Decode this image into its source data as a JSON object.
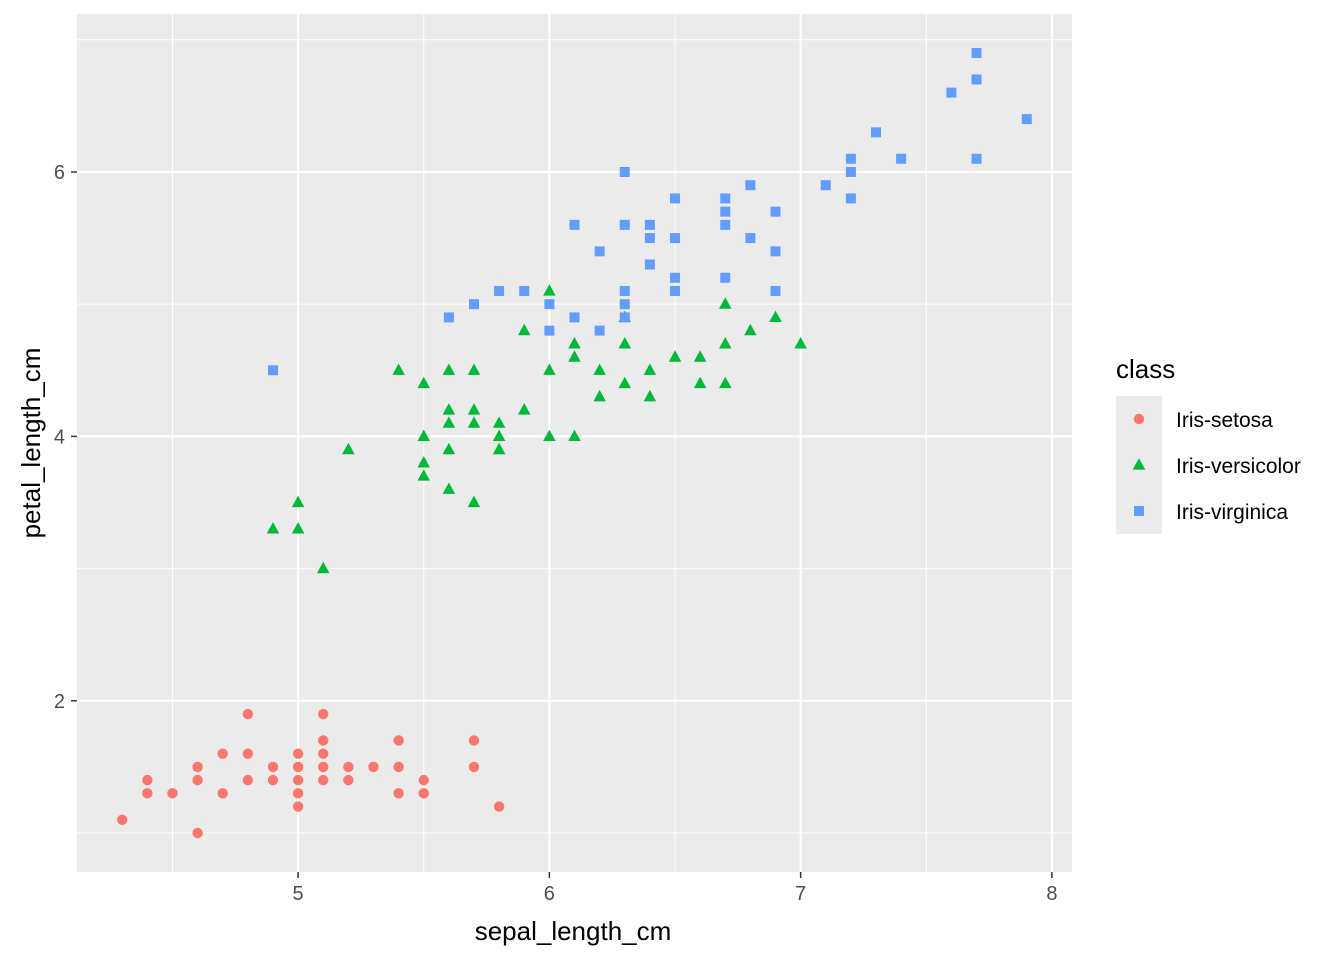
{
  "chart_data": {
    "type": "scatter",
    "xlabel": "sepal_length_cm",
    "ylabel": "petal_length_cm",
    "xlim": [
      4.12,
      8.08
    ],
    "ylim": [
      0.705,
      7.195
    ],
    "x_ticks": [
      5,
      6,
      7,
      8
    ],
    "x_tick_labels": [
      "5",
      "6",
      "7",
      "8"
    ],
    "y_ticks": [
      2,
      4,
      6
    ],
    "y_tick_labels": [
      "2",
      "4",
      "6"
    ],
    "grid": true,
    "legend": {
      "title": "class",
      "placement": "right"
    },
    "series": [
      {
        "name": "Iris-setosa",
        "color": "#F8766D",
        "shape": "circle",
        "points": [
          [
            4.3,
            1.1
          ],
          [
            4.4,
            1.4
          ],
          [
            4.4,
            1.3
          ],
          [
            4.5,
            1.3
          ],
          [
            4.6,
            1.5
          ],
          [
            4.6,
            1.4
          ],
          [
            4.6,
            1.0
          ],
          [
            4.7,
            1.6
          ],
          [
            4.7,
            1.3
          ],
          [
            4.8,
            1.9
          ],
          [
            4.8,
            1.6
          ],
          [
            4.8,
            1.4
          ],
          [
            4.9,
            1.5
          ],
          [
            4.9,
            1.4
          ],
          [
            5.0,
            1.6
          ],
          [
            5.0,
            1.5
          ],
          [
            5.0,
            1.4
          ],
          [
            5.0,
            1.3
          ],
          [
            5.0,
            1.2
          ],
          [
            5.1,
            1.9
          ],
          [
            5.1,
            1.7
          ],
          [
            5.1,
            1.6
          ],
          [
            5.1,
            1.5
          ],
          [
            5.1,
            1.4
          ],
          [
            5.2,
            1.5
          ],
          [
            5.2,
            1.4
          ],
          [
            5.3,
            1.5
          ],
          [
            5.4,
            1.7
          ],
          [
            5.4,
            1.5
          ],
          [
            5.4,
            1.3
          ],
          [
            5.5,
            1.4
          ],
          [
            5.5,
            1.3
          ],
          [
            5.7,
            1.7
          ],
          [
            5.7,
            1.5
          ],
          [
            5.8,
            1.2
          ]
        ]
      },
      {
        "name": "Iris-versicolor",
        "color": "#00BA38",
        "shape": "triangle",
        "points": [
          [
            4.9,
            3.3
          ],
          [
            5.0,
            3.5
          ],
          [
            5.0,
            3.3
          ],
          [
            5.1,
            3.0
          ],
          [
            5.2,
            3.9
          ],
          [
            5.4,
            4.5
          ],
          [
            5.5,
            4.4
          ],
          [
            5.5,
            4.0
          ],
          [
            5.5,
            3.8
          ],
          [
            5.5,
            3.7
          ],
          [
            5.6,
            4.5
          ],
          [
            5.6,
            4.2
          ],
          [
            5.6,
            4.1
          ],
          [
            5.6,
            3.9
          ],
          [
            5.6,
            3.6
          ],
          [
            5.7,
            4.5
          ],
          [
            5.7,
            4.2
          ],
          [
            5.7,
            4.1
          ],
          [
            5.7,
            3.5
          ],
          [
            5.8,
            4.1
          ],
          [
            5.8,
            4.0
          ],
          [
            5.8,
            3.9
          ],
          [
            5.9,
            4.8
          ],
          [
            5.9,
            4.2
          ],
          [
            6.0,
            5.1
          ],
          [
            6.0,
            4.5
          ],
          [
            6.0,
            4.0
          ],
          [
            6.1,
            4.7
          ],
          [
            6.1,
            4.6
          ],
          [
            6.1,
            4.0
          ],
          [
            6.2,
            4.5
          ],
          [
            6.2,
            4.3
          ],
          [
            6.3,
            4.9
          ],
          [
            6.3,
            4.7
          ],
          [
            6.3,
            4.4
          ],
          [
            6.4,
            4.5
          ],
          [
            6.4,
            4.3
          ],
          [
            6.5,
            4.6
          ],
          [
            6.6,
            4.6
          ],
          [
            6.6,
            4.4
          ],
          [
            6.7,
            5.0
          ],
          [
            6.7,
            4.7
          ],
          [
            6.7,
            4.4
          ],
          [
            6.8,
            4.8
          ],
          [
            6.9,
            4.9
          ],
          [
            7.0,
            4.7
          ]
        ]
      },
      {
        "name": "Iris-virginica",
        "color": "#619CFF",
        "shape": "square",
        "points": [
          [
            4.9,
            4.5
          ],
          [
            5.6,
            4.9
          ],
          [
            5.7,
            5.0
          ],
          [
            5.8,
            5.1
          ],
          [
            5.9,
            5.1
          ],
          [
            6.0,
            5.0
          ],
          [
            6.0,
            4.8
          ],
          [
            6.1,
            5.6
          ],
          [
            6.1,
            4.9
          ],
          [
            6.2,
            5.4
          ],
          [
            6.2,
            4.8
          ],
          [
            6.3,
            6.0
          ],
          [
            6.3,
            5.6
          ],
          [
            6.3,
            5.1
          ],
          [
            6.3,
            5.0
          ],
          [
            6.3,
            4.9
          ],
          [
            6.4,
            5.6
          ],
          [
            6.4,
            5.5
          ],
          [
            6.4,
            5.3
          ],
          [
            6.5,
            5.8
          ],
          [
            6.5,
            5.5
          ],
          [
            6.5,
            5.2
          ],
          [
            6.5,
            5.1
          ],
          [
            6.7,
            5.8
          ],
          [
            6.7,
            5.7
          ],
          [
            6.7,
            5.6
          ],
          [
            6.7,
            5.2
          ],
          [
            6.8,
            5.9
          ],
          [
            6.8,
            5.5
          ],
          [
            6.9,
            5.7
          ],
          [
            6.9,
            5.4
          ],
          [
            6.9,
            5.1
          ],
          [
            7.1,
            5.9
          ],
          [
            7.2,
            6.1
          ],
          [
            7.2,
            6.0
          ],
          [
            7.2,
            5.8
          ],
          [
            7.3,
            6.3
          ],
          [
            7.4,
            6.1
          ],
          [
            7.6,
            6.6
          ],
          [
            7.7,
            6.9
          ],
          [
            7.7,
            6.7
          ],
          [
            7.7,
            6.1
          ],
          [
            7.9,
            6.4
          ]
        ]
      }
    ]
  }
}
